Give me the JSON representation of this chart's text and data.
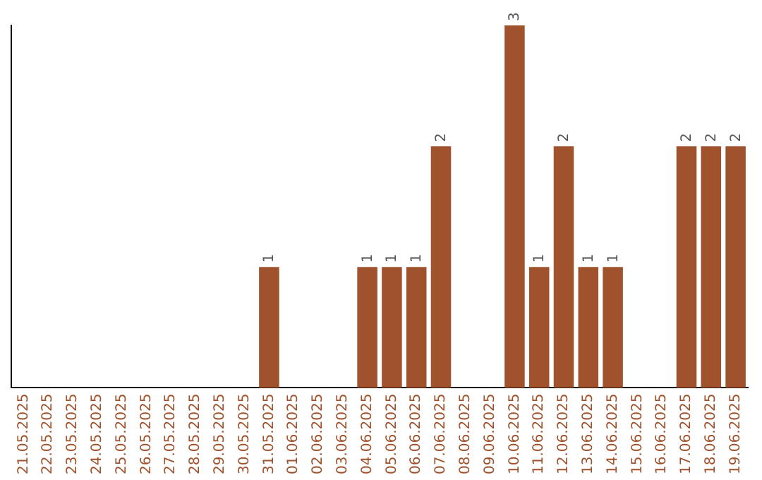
{
  "chart_data": {
    "type": "bar",
    "categories": [
      "21.05.2025",
      "22.05.2025",
      "23.05.2025",
      "24.05.2025",
      "25.05.2025",
      "26.05.2025",
      "27.05.2025",
      "28.05.2025",
      "29.05.2025",
      "30.05.2025",
      "31.05.2025",
      "01.06.2025",
      "02.06.2025",
      "03.06.2025",
      "04.06.2025",
      "05.06.2025",
      "06.06.2025",
      "07.06.2025",
      "08.06.2025",
      "09.06.2025",
      "10.06.2025",
      "11.06.2025",
      "12.06.2025",
      "13.06.2025",
      "14.06.2025",
      "15.06.2025",
      "16.06.2025",
      "17.06.2025",
      "18.06.2025",
      "19.06.2025"
    ],
    "values": [
      0,
      0,
      0,
      0,
      0,
      0,
      0,
      0,
      0,
      0,
      1,
      0,
      0,
      0,
      1,
      1,
      1,
      2,
      0,
      0,
      3,
      1,
      2,
      1,
      1,
      0,
      0,
      2,
      2,
      2
    ],
    "value_labels": [
      null,
      null,
      null,
      null,
      null,
      null,
      null,
      null,
      null,
      null,
      "1",
      null,
      null,
      null,
      "1",
      "1",
      "1",
      "2",
      null,
      null,
      "3",
      "1",
      "2",
      "1",
      "1",
      null,
      null,
      "2",
      "2",
      "2"
    ],
    "color": "#a0522d",
    "grid": false,
    "legend": false,
    "tick_labels": "x"
  }
}
